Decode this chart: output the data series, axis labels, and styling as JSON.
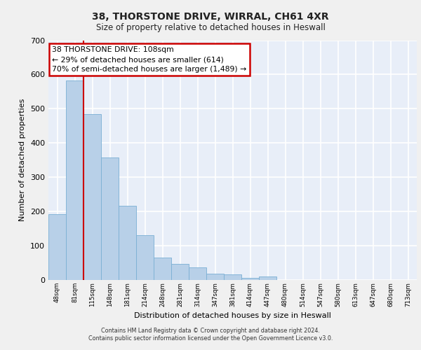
{
  "title_line1": "38, THORSTONE DRIVE, WIRRAL, CH61 4XR",
  "title_line2": "Size of property relative to detached houses in Heswall",
  "xlabel": "Distribution of detached houses by size in Heswall",
  "ylabel": "Number of detached properties",
  "categories": [
    "48sqm",
    "81sqm",
    "115sqm",
    "148sqm",
    "181sqm",
    "214sqm",
    "248sqm",
    "281sqm",
    "314sqm",
    "347sqm",
    "381sqm",
    "414sqm",
    "447sqm",
    "480sqm",
    "514sqm",
    "547sqm",
    "580sqm",
    "613sqm",
    "647sqm",
    "680sqm",
    "713sqm"
  ],
  "values": [
    193,
    583,
    484,
    357,
    216,
    130,
    65,
    48,
    36,
    18,
    17,
    7,
    11,
    0,
    0,
    0,
    0,
    0,
    0,
    0,
    0
  ],
  "bar_color": "#b8d0e8",
  "bar_edge_color": "#7aafd4",
  "annotation_text": "38 THORSTONE DRIVE: 108sqm\n← 29% of detached houses are smaller (614)\n70% of semi-detached houses are larger (1,489) →",
  "annotation_box_color": "#ffffff",
  "annotation_box_edge_color": "#cc0000",
  "vline_color": "#cc0000",
  "vline_x_index": 1.5,
  "ylim": [
    0,
    700
  ],
  "yticks": [
    0,
    100,
    200,
    300,
    400,
    500,
    600,
    700
  ],
  "background_color": "#e8eef8",
  "grid_color": "#ffffff",
  "footer_line1": "Contains HM Land Registry data © Crown copyright and database right 2024.",
  "footer_line2": "Contains public sector information licensed under the Open Government Licence v3.0."
}
